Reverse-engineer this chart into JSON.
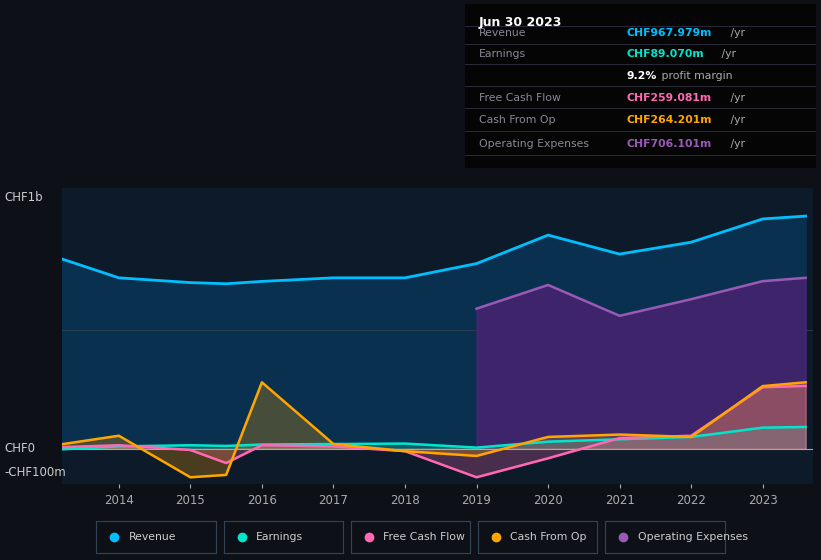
{
  "background_color": "#0d1117",
  "chart_bg": "#0d1a2a",
  "years": [
    2013,
    2014,
    2015,
    2015.5,
    2016,
    2017,
    2018,
    2019,
    2020,
    2021,
    2022,
    2023,
    2023.6
  ],
  "revenue": [
    820,
    720,
    700,
    695,
    705,
    720,
    720,
    780,
    900,
    820,
    870,
    968,
    980
  ],
  "earnings": [
    -5,
    10,
    15,
    12,
    18,
    20,
    22,
    5,
    30,
    40,
    50,
    89,
    92
  ],
  "free_cash_flow": [
    5,
    15,
    -5,
    -60,
    15,
    10,
    -10,
    -120,
    -40,
    45,
    55,
    259,
    265
  ],
  "cash_from_op": [
    10,
    55,
    -120,
    -110,
    280,
    20,
    -10,
    -30,
    50,
    60,
    50,
    264,
    280
  ],
  "operating_expenses_years": [
    2019,
    2020,
    2021,
    2022,
    2023,
    2023.6
  ],
  "operating_expenses_vals": [
    590,
    690,
    560,
    630,
    706,
    720
  ],
  "revenue_color": "#00bfff",
  "earnings_color": "#00e5cc",
  "free_cash_flow_color": "#ff69b4",
  "cash_from_op_color": "#ffa500",
  "operating_expenses_color": "#9b59b6",
  "revenue_fill": "#0a3050",
  "operating_expenses_fill": "#2d1b5e",
  "ylim_min": -150,
  "ylim_max": 1100,
  "ylabel_top": "CHF1b",
  "ylabel_zero": "CHF0",
  "ylabel_neg": "-CHF100m",
  "x_ticks": [
    2014,
    2015,
    2016,
    2017,
    2018,
    2019,
    2020,
    2021,
    2022,
    2023
  ],
  "info_box": {
    "date": "Jun 30 2023",
    "rows": [
      {
        "label": "Revenue",
        "val": "CHF967.979m",
        "suffix": " /yr",
        "color": "#00bfff",
        "bold_pct": null
      },
      {
        "label": "Earnings",
        "val": "CHF89.070m",
        "suffix": " /yr",
        "color": "#00e5cc",
        "bold_pct": null
      },
      {
        "label": "",
        "val": "profit margin",
        "suffix": "",
        "color": "#cccccc",
        "bold_pct": "9.2%"
      },
      {
        "label": "Free Cash Flow",
        "val": "CHF259.081m",
        "suffix": " /yr",
        "color": "#ff69b4",
        "bold_pct": null
      },
      {
        "label": "Cash From Op",
        "val": "CHF264.201m",
        "suffix": " /yr",
        "color": "#ffa500",
        "bold_pct": null
      },
      {
        "label": "Operating Expenses",
        "val": "CHF706.101m",
        "suffix": " /yr",
        "color": "#9b59b6",
        "bold_pct": null
      }
    ]
  },
  "legend_items": [
    {
      "label": "Revenue",
      "color": "#00bfff"
    },
    {
      "label": "Earnings",
      "color": "#00e5cc"
    },
    {
      "label": "Free Cash Flow",
      "color": "#ff69b4"
    },
    {
      "label": "Cash From Op",
      "color": "#ffa500"
    },
    {
      "label": "Operating Expenses",
      "color": "#9b59b6"
    }
  ]
}
